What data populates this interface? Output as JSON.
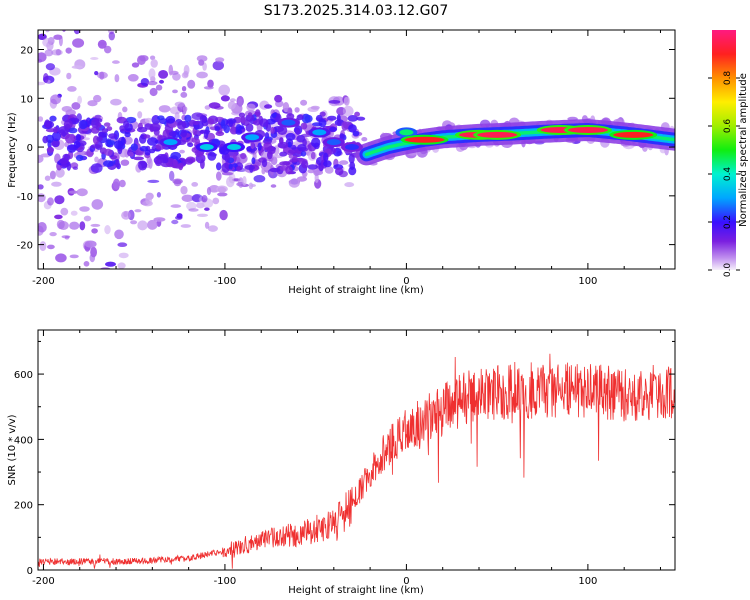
{
  "title": "S173.2025.314.03.12.G07",
  "chart_data": [
    {
      "type": "heatmap",
      "xlabel": "Height of straight line (km)",
      "ylabel": "Frequency (Hz)",
      "xlim": [
        -203,
        148
      ],
      "ylim": [
        -25,
        24
      ],
      "xticks": [
        -200,
        -100,
        0,
        100
      ],
      "yticks": [
        -20,
        -10,
        0,
        10,
        20
      ],
      "colorbar": {
        "label": "Normalized spectral amplitude",
        "range": [
          0,
          1
        ],
        "ticks": [
          "0.0",
          "0.2",
          "0.4",
          "0.6",
          "0.8"
        ]
      },
      "ridge": {
        "x": [
          -22,
          -10,
          0,
          10,
          20,
          40,
          60,
          80,
          100,
          120,
          148
        ],
        "freq": [
          -1.5,
          0,
          0.8,
          1.5,
          2.0,
          2.5,
          2.8,
          3.2,
          3.5,
          2.8,
          1.5
        ]
      },
      "bright_spots": [
        {
          "x": -130,
          "freq": 1,
          "amp": 0.3
        },
        {
          "x": -110,
          "freq": 0,
          "amp": 0.35
        },
        {
          "x": -95,
          "freq": 0,
          "amp": 0.35
        },
        {
          "x": -85,
          "freq": 2,
          "amp": 0.3
        },
        {
          "x": -65,
          "freq": 5,
          "amp": 0.25
        },
        {
          "x": -48,
          "freq": 3,
          "amp": 0.3
        },
        {
          "x": -40,
          "freq": 1,
          "amp": 0.25
        },
        {
          "x": -30,
          "freq": 0,
          "amp": 0.22
        },
        {
          "x": 0,
          "freq": 3,
          "amp": 0.45
        },
        {
          "x": 10,
          "freq": 1.5,
          "amp": 0.9
        },
        {
          "x": 40,
          "freq": 2.5,
          "amp": 0.95
        },
        {
          "x": 50,
          "freq": 2.5,
          "amp": 0.95
        },
        {
          "x": 85,
          "freq": 3.5,
          "amp": 0.95
        },
        {
          "x": 100,
          "freq": 3.5,
          "amp": 0.95
        },
        {
          "x": 125,
          "freq": 2.5,
          "amp": 0.9
        }
      ]
    },
    {
      "type": "line",
      "xlabel": "Height of straight line (km)",
      "ylabel": "SNR (10 * v/v)",
      "xlim": [
        -203,
        148
      ],
      "ylim": [
        0,
        735
      ],
      "xticks": [
        -200,
        -100,
        0,
        100
      ],
      "yticks": [
        0,
        200,
        400,
        600
      ],
      "color": "#ef3030",
      "trend": {
        "x": [
          -203,
          -140,
          -120,
          -100,
          -80,
          -60,
          -40,
          -30,
          -20,
          -10,
          0,
          10,
          20,
          30,
          40,
          60,
          80,
          100,
          120,
          148
        ],
        "y": [
          25,
          28,
          35,
          60,
          90,
          110,
          140,
          200,
          300,
          380,
          430,
          460,
          490,
          520,
          540,
          550,
          550,
          545,
          540,
          545
        ]
      }
    }
  ]
}
